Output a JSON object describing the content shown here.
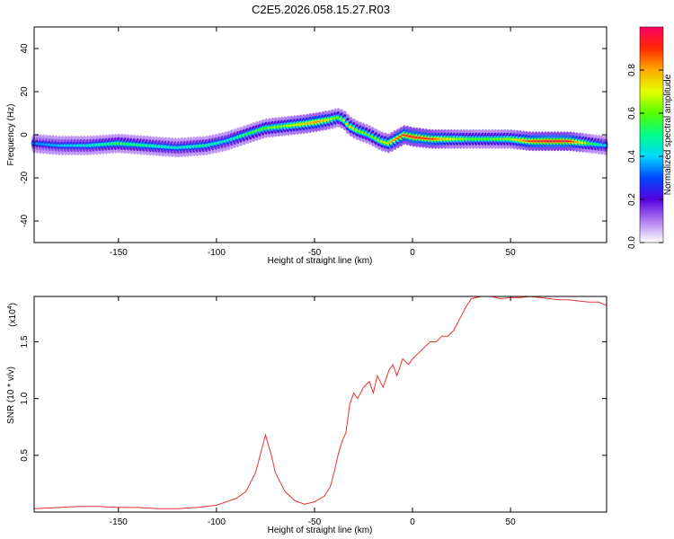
{
  "page_title": "C2E5.2026.058.15.27.R03",
  "chart_data": [
    {
      "type": "heatmap",
      "title": "C2E5.2026.058.15.27.R03",
      "xlabel": "Height of straight line (km)",
      "ylabel": "Frequency (Hz)",
      "xlim": [
        -193,
        99
      ],
      "ylim": [
        -50,
        50
      ],
      "xticks": [
        -150,
        -100,
        -50,
        0,
        50
      ],
      "yticks": [
        -40,
        -20,
        0,
        20,
        40
      ],
      "ridge": {
        "x": [
          -193,
          -180,
          -165,
          -150,
          -135,
          -120,
          -105,
          -95,
          -85,
          -75,
          -65,
          -55,
          -48,
          -42,
          -38,
          -35,
          -32,
          -28,
          -22,
          -16,
          -12,
          -8,
          -4,
          0,
          10,
          20,
          30,
          40,
          50,
          60,
          70,
          80,
          90,
          99
        ],
        "frequency": [
          -4,
          -5,
          -5,
          -4,
          -5,
          -6,
          -5,
          -3,
          0,
          3,
          4,
          5,
          6,
          7,
          8,
          7,
          4,
          2,
          0,
          -3,
          -4,
          -2,
          0,
          -1,
          -2,
          -2,
          -2,
          -2,
          -2,
          -3,
          -3,
          -3,
          -4,
          -5
        ],
        "amplitude": [
          0.35,
          0.4,
          0.45,
          0.55,
          0.5,
          0.45,
          0.5,
          0.45,
          0.55,
          0.6,
          0.65,
          0.75,
          0.85,
          0.7,
          0.6,
          0.65,
          0.7,
          0.65,
          0.6,
          0.65,
          0.75,
          0.85,
          0.9,
          0.95,
          0.9,
          0.7,
          0.6,
          0.6,
          0.65,
          0.9,
          0.98,
          0.95,
          0.6,
          0.4
        ]
      },
      "colorbar": {
        "label": "Normalized spectral amplitude",
        "ticks": [
          0.0,
          0.2,
          0.4,
          0.6,
          0.8
        ],
        "range": [
          0,
          1
        ],
        "tick_labels": [
          "0.0",
          "0.2",
          "0.4",
          "0.6",
          "0.8"
        ]
      }
    },
    {
      "type": "line",
      "xlabel": "Height of straight line (km)",
      "ylabel": "SNR (10 * v/v)",
      "yscale_label": "(x10",
      "yscale_exp": "4",
      "yscale_close": ")",
      "xlim": [
        -193,
        99
      ],
      "ylim": [
        0,
        1.9
      ],
      "xticks": [
        -150,
        -100,
        -50,
        0,
        50
      ],
      "yticks": [
        0.5,
        1.0,
        1.5
      ],
      "ytick_labels": [
        "0.5",
        "1.0",
        "1.5"
      ],
      "series": [
        {
          "name": "SNR",
          "color": "#e8322f",
          "x": [
            -193,
            -180,
            -170,
            -160,
            -150,
            -140,
            -130,
            -120,
            -110,
            -100,
            -95,
            -90,
            -85,
            -80,
            -77,
            -75,
            -72,
            -70,
            -65,
            -60,
            -55,
            -50,
            -45,
            -42,
            -40,
            -38,
            -36,
            -34,
            -32,
            -30,
            -28,
            -25,
            -22,
            -20,
            -18,
            -15,
            -12,
            -10,
            -8,
            -5,
            -2,
            0,
            3,
            6,
            9,
            12,
            15,
            18,
            21,
            24,
            27,
            30,
            35,
            40,
            45,
            50,
            55,
            60,
            65,
            70,
            75,
            80,
            85,
            90,
            95,
            99
          ],
          "y": [
            0.03,
            0.04,
            0.05,
            0.05,
            0.04,
            0.04,
            0.03,
            0.03,
            0.04,
            0.06,
            0.09,
            0.12,
            0.18,
            0.35,
            0.55,
            0.68,
            0.5,
            0.35,
            0.18,
            0.1,
            0.07,
            0.09,
            0.14,
            0.22,
            0.35,
            0.5,
            0.62,
            0.7,
            0.95,
            1.05,
            1.0,
            1.1,
            1.15,
            1.05,
            1.2,
            1.1,
            1.25,
            1.3,
            1.2,
            1.35,
            1.3,
            1.35,
            1.4,
            1.45,
            1.5,
            1.5,
            1.55,
            1.55,
            1.6,
            1.7,
            1.8,
            1.88,
            1.9,
            1.9,
            1.88,
            1.89,
            1.89,
            1.9,
            1.89,
            1.88,
            1.87,
            1.87,
            1.86,
            1.85,
            1.85,
            1.82
          ]
        }
      ]
    }
  ]
}
